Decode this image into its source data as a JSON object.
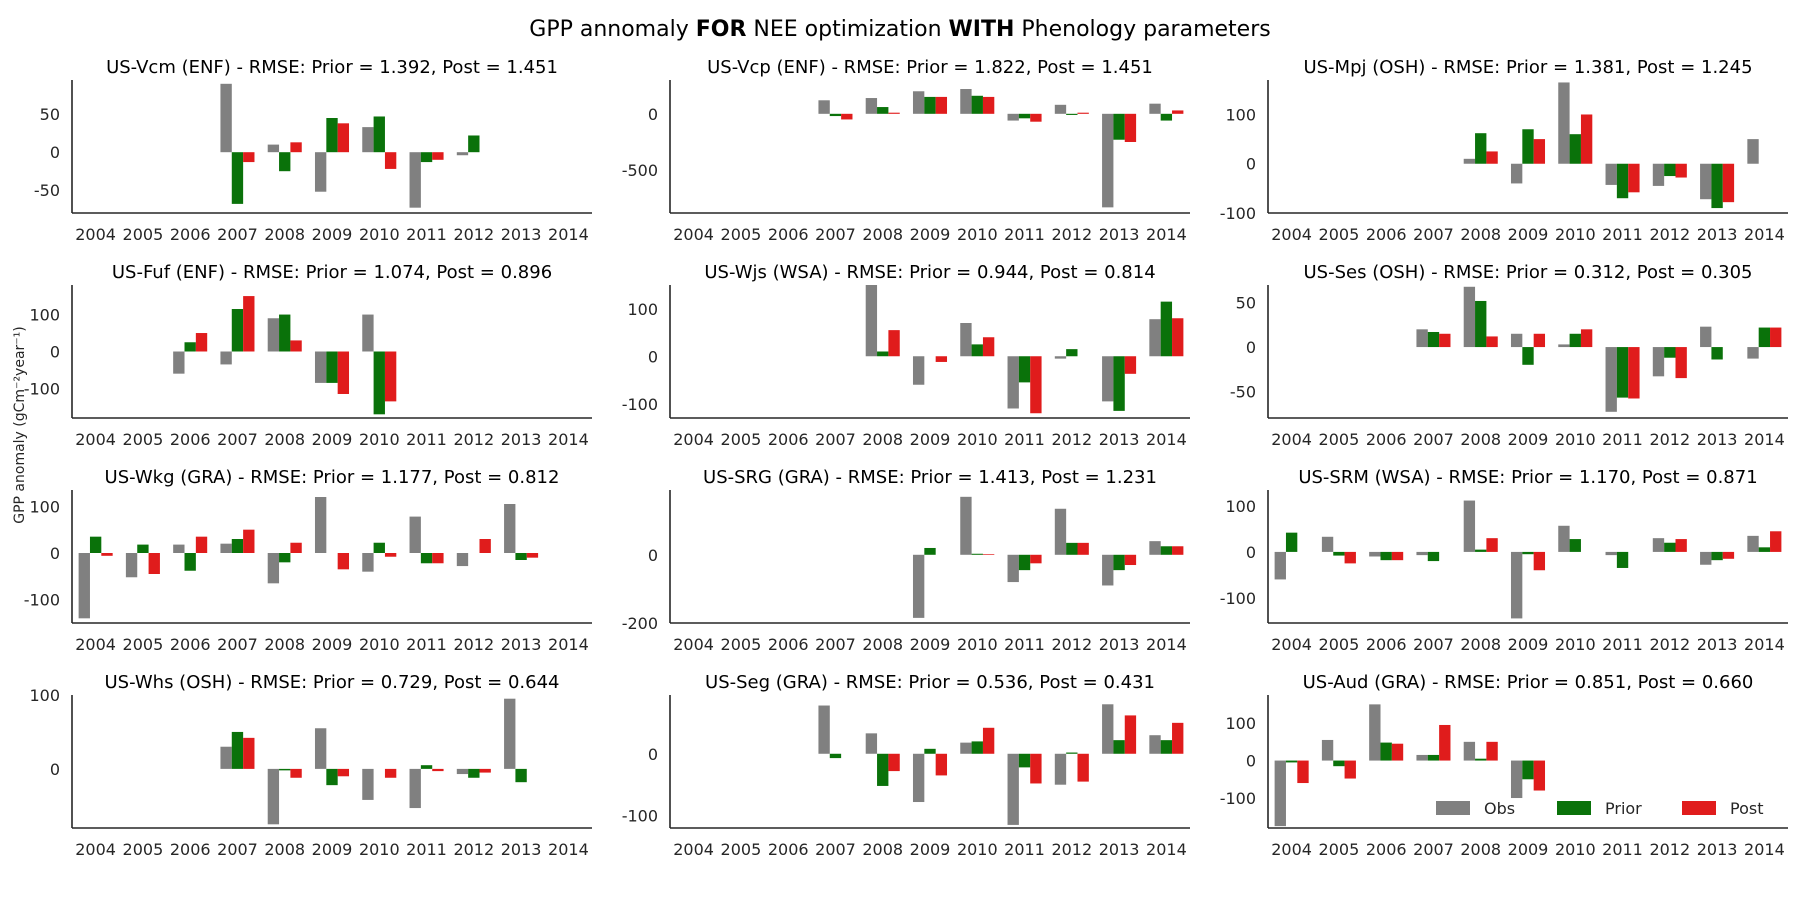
{
  "figure": {
    "title_parts": [
      {
        "text": "GPP annomaly ",
        "bold": false
      },
      {
        "text": "FOR",
        "bold": true
      },
      {
        "text": " NEE optimization ",
        "bold": false
      },
      {
        "text": "WITH",
        "bold": true
      },
      {
        "text": " Phenology parameters",
        "bold": false
      }
    ],
    "ylabel": "GPP anomaly (gCm⁻²year⁻¹)",
    "colors": {
      "obs": "#808080",
      "prior": "#0a720a",
      "post": "#e01c1c"
    }
  },
  "chart_data": [
    {
      "type": "bar",
      "title": "US-Vcm (ENF) - RMSE: Prior = 1.392, Post = 1.451",
      "categories": [
        "2004",
        "2005",
        "2006",
        "2007",
        "2008",
        "2009",
        "2010",
        "2011",
        "2012",
        "2013",
        "2014"
      ],
      "ylim": [
        -80,
        95
      ],
      "yticks": [
        -50,
        0,
        50
      ],
      "series": [
        {
          "name": "Obs",
          "values": [
            null,
            null,
            null,
            90,
            10,
            -52,
            33,
            -73,
            -4,
            null,
            null
          ]
        },
        {
          "name": "Prior",
          "values": [
            null,
            null,
            null,
            -68,
            -25,
            45,
            47,
            -13,
            22,
            null,
            null
          ]
        },
        {
          "name": "Post",
          "values": [
            null,
            null,
            null,
            -13,
            13,
            38,
            -22,
            -10,
            null,
            null,
            null
          ]
        }
      ]
    },
    {
      "type": "bar",
      "title": "US-Vcp (ENF) - RMSE: Prior = 1.822, Post = 1.451",
      "categories": [
        "2004",
        "2005",
        "2006",
        "2007",
        "2008",
        "2009",
        "2010",
        "2011",
        "2012",
        "2013",
        "2014"
      ],
      "ylim": [
        -880,
        300
      ],
      "yticks": [
        -500,
        0
      ],
      "series": [
        {
          "name": "Obs",
          "values": [
            null,
            null,
            null,
            120,
            140,
            200,
            220,
            -60,
            80,
            -830,
            90
          ]
        },
        {
          "name": "Prior",
          "values": [
            null,
            null,
            null,
            -20,
            60,
            150,
            160,
            -40,
            -10,
            -230,
            -60
          ]
        },
        {
          "name": "Post",
          "values": [
            null,
            null,
            null,
            -50,
            10,
            150,
            150,
            -70,
            10,
            -250,
            30
          ]
        }
      ]
    },
    {
      "type": "bar",
      "title": "US-Mpj (OSH) - RMSE: Prior = 1.381, Post = 1.245",
      "categories": [
        "2004",
        "2005",
        "2006",
        "2007",
        "2008",
        "2009",
        "2010",
        "2011",
        "2012",
        "2013",
        "2014"
      ],
      "ylim": [
        -100,
        170
      ],
      "yticks": [
        -100,
        0,
        100
      ],
      "series": [
        {
          "name": "Obs",
          "values": [
            null,
            null,
            null,
            null,
            10,
            -40,
            165,
            -43,
            -45,
            -72,
            50
          ]
        },
        {
          "name": "Prior",
          "values": [
            null,
            null,
            null,
            null,
            62,
            70,
            60,
            -70,
            -25,
            -90,
            null
          ]
        },
        {
          "name": "Post",
          "values": [
            null,
            null,
            null,
            null,
            25,
            50,
            100,
            -58,
            -28,
            -78,
            null
          ]
        }
      ]
    },
    {
      "type": "bar",
      "title": "US-Fuf (ENF) - RMSE: Prior = 1.074, Post = 0.896",
      "categories": [
        "2004",
        "2005",
        "2006",
        "2007",
        "2008",
        "2009",
        "2010",
        "2011",
        "2012",
        "2013",
        "2014"
      ],
      "ylim": [
        -180,
        180
      ],
      "yticks": [
        -100,
        0,
        100
      ],
      "series": [
        {
          "name": "Obs",
          "values": [
            null,
            null,
            -60,
            -35,
            90,
            -85,
            100,
            null,
            null,
            null,
            null
          ]
        },
        {
          "name": "Prior",
          "values": [
            null,
            null,
            25,
            115,
            100,
            -85,
            -170,
            null,
            null,
            null,
            null
          ]
        },
        {
          "name": "Post",
          "values": [
            null,
            null,
            50,
            150,
            30,
            -115,
            -135,
            null,
            null,
            null,
            null
          ]
        }
      ]
    },
    {
      "type": "bar",
      "title": "US-Wjs (WSA) - RMSE: Prior = 0.944, Post = 0.814",
      "categories": [
        "2004",
        "2005",
        "2006",
        "2007",
        "2008",
        "2009",
        "2010",
        "2011",
        "2012",
        "2013",
        "2014"
      ],
      "ylim": [
        -130,
        150
      ],
      "yticks": [
        -100,
        0,
        100
      ],
      "series": [
        {
          "name": "Obs",
          "values": [
            null,
            null,
            null,
            null,
            150,
            -60,
            70,
            -110,
            -5,
            -95,
            78
          ]
        },
        {
          "name": "Prior",
          "values": [
            null,
            null,
            null,
            null,
            10,
            null,
            25,
            -55,
            15,
            -115,
            115
          ]
        },
        {
          "name": "Post",
          "values": [
            null,
            null,
            null,
            null,
            55,
            -12,
            40,
            -120,
            null,
            -37,
            80
          ]
        }
      ]
    },
    {
      "type": "bar",
      "title": "US-Ses (OSH) - RMSE: Prior = 0.312, Post = 0.305",
      "categories": [
        "2004",
        "2005",
        "2006",
        "2007",
        "2008",
        "2009",
        "2010",
        "2011",
        "2012",
        "2013",
        "2014"
      ],
      "ylim": [
        -80,
        70
      ],
      "yticks": [
        -50,
        0,
        50
      ],
      "series": [
        {
          "name": "Obs",
          "values": [
            null,
            null,
            null,
            20,
            68,
            15,
            3,
            -73,
            -33,
            23,
            -13
          ]
        },
        {
          "name": "Prior",
          "values": [
            null,
            null,
            null,
            17,
            52,
            -20,
            15,
            -57,
            -12,
            -14,
            22
          ]
        },
        {
          "name": "Post",
          "values": [
            null,
            null,
            null,
            15,
            12,
            15,
            20,
            -58,
            -35,
            null,
            22
          ]
        }
      ]
    },
    {
      "type": "bar",
      "title": "US-Wkg (GRA) - RMSE: Prior = 1.177, Post = 0.812",
      "categories": [
        "2004",
        "2005",
        "2006",
        "2007",
        "2008",
        "2009",
        "2010",
        "2011",
        "2012",
        "2013",
        "2014"
      ],
      "ylim": [
        -150,
        135
      ],
      "yticks": [
        -100,
        0,
        100
      ],
      "series": [
        {
          "name": "Obs",
          "values": [
            -140,
            -52,
            18,
            20,
            -65,
            120,
            -40,
            78,
            -28,
            105,
            null
          ]
        },
        {
          "name": "Prior",
          "values": [
            35,
            18,
            -38,
            30,
            -20,
            null,
            22,
            -22,
            null,
            -15,
            null
          ]
        },
        {
          "name": "Post",
          "values": [
            -6,
            -45,
            35,
            50,
            22,
            -35,
            -8,
            -22,
            30,
            -10,
            null
          ]
        }
      ]
    },
    {
      "type": "bar",
      "title": "US-SRG (GRA) - RMSE: Prior = 1.413, Post = 1.231",
      "categories": [
        "2004",
        "2005",
        "2006",
        "2007",
        "2008",
        "2009",
        "2010",
        "2011",
        "2012",
        "2013",
        "2014"
      ],
      "ylim": [
        -200,
        190
      ],
      "yticks": [
        -200,
        0
      ],
      "series": [
        {
          "name": "Obs",
          "values": [
            null,
            null,
            null,
            null,
            null,
            -185,
            170,
            -80,
            135,
            -90,
            40
          ]
        },
        {
          "name": "Prior",
          "values": [
            null,
            null,
            null,
            null,
            null,
            20,
            3,
            -45,
            35,
            -45,
            25
          ]
        },
        {
          "name": "Post",
          "values": [
            null,
            null,
            null,
            null,
            null,
            null,
            2,
            -25,
            35,
            -30,
            25
          ]
        }
      ]
    },
    {
      "type": "bar",
      "title": "US-SRM (WSA) - RMSE: Prior = 1.170, Post = 0.871",
      "categories": [
        "2004",
        "2005",
        "2006",
        "2007",
        "2008",
        "2009",
        "2010",
        "2011",
        "2012",
        "2013",
        "2014"
      ],
      "ylim": [
        -155,
        135
      ],
      "yticks": [
        -100,
        0,
        100
      ],
      "series": [
        {
          "name": "Obs",
          "values": [
            -60,
            33,
            -10,
            -7,
            112,
            -145,
            57,
            -7,
            30,
            -28,
            35
          ]
        },
        {
          "name": "Prior",
          "values": [
            42,
            -8,
            -18,
            -20,
            5,
            -5,
            28,
            -35,
            20,
            -18,
            10
          ]
        },
        {
          "name": "Post",
          "values": [
            null,
            -25,
            -18,
            null,
            30,
            -40,
            null,
            null,
            28,
            -15,
            45
          ]
        }
      ]
    },
    {
      "type": "bar",
      "title": "US-Whs (OSH) - RMSE: Prior = 0.729, Post = 0.644",
      "categories": [
        "2004",
        "2005",
        "2006",
        "2007",
        "2008",
        "2009",
        "2010",
        "2011",
        "2012",
        "2013",
        "2014"
      ],
      "ylim": [
        -80,
        100
      ],
      "yticks": [
        0,
        100
      ],
      "series": [
        {
          "name": "Obs",
          "values": [
            null,
            null,
            null,
            30,
            -75,
            55,
            -42,
            -53,
            -7,
            95,
            null
          ]
        },
        {
          "name": "Prior",
          "values": [
            null,
            null,
            null,
            50,
            -2,
            -22,
            null,
            5,
            -12,
            -18,
            null
          ]
        },
        {
          "name": "Post",
          "values": [
            null,
            null,
            null,
            42,
            -12,
            -10,
            -12,
            -3,
            -5,
            null,
            null
          ]
        }
      ]
    },
    {
      "type": "bar",
      "title": "US-Seg (GRA) - RMSE: Prior = 0.536, Post = 0.431",
      "categories": [
        "2004",
        "2005",
        "2006",
        "2007",
        "2008",
        "2009",
        "2010",
        "2011",
        "2012",
        "2013",
        "2014"
      ],
      "ylim": [
        -120,
        95
      ],
      "yticks": [
        -100,
        0
      ],
      "series": [
        {
          "name": "Obs",
          "values": [
            null,
            null,
            null,
            78,
            33,
            -78,
            18,
            -115,
            -50,
            80,
            30
          ]
        },
        {
          "name": "Prior",
          "values": [
            null,
            null,
            null,
            -7,
            -52,
            8,
            20,
            -22,
            2,
            22,
            22
          ]
        },
        {
          "name": "Post",
          "values": [
            null,
            null,
            null,
            null,
            -28,
            -35,
            42,
            -48,
            -45,
            62,
            50
          ]
        }
      ]
    },
    {
      "type": "bar",
      "title": "US-Aud (GRA) - RMSE: Prior = 0.851, Post = 0.660",
      "categories": [
        "2004",
        "2005",
        "2006",
        "2007",
        "2008",
        "2009",
        "2010",
        "2011",
        "2012",
        "2013",
        "2014"
      ],
      "ylim": [
        -180,
        175
      ],
      "yticks": [
        -100,
        0,
        100
      ],
      "series": [
        {
          "name": "Obs",
          "values": [
            -175,
            55,
            150,
            15,
            50,
            -100,
            null,
            null,
            null,
            null,
            null
          ]
        },
        {
          "name": "Prior",
          "values": [
            -5,
            -15,
            48,
            15,
            5,
            -50,
            null,
            null,
            null,
            null,
            null
          ]
        },
        {
          "name": "Post",
          "values": [
            -60,
            -48,
            45,
            95,
            50,
            -80,
            null,
            null,
            null,
            null,
            null
          ]
        }
      ],
      "legend": {
        "placement": "bottom-right",
        "labels": [
          "Obs",
          "Prior",
          "Post"
        ]
      }
    }
  ]
}
